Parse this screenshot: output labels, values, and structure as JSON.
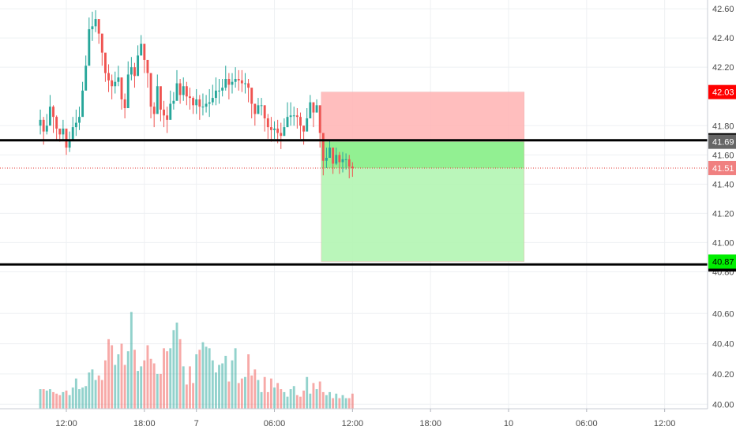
{
  "chart_data": {
    "type": "candlestick",
    "title": "",
    "price_axis": {
      "range": [
        40.77,
        42.66
      ],
      "ticks": [
        "42.60",
        "42.40",
        "42.20",
        "41.80",
        "41.60",
        "41.40",
        "41.20",
        "41.00",
        "40.80"
      ]
    },
    "volume_axis": {
      "range": [
        39.97,
        40.69
      ],
      "ticks": [
        "40.60",
        "40.40",
        "40.20",
        "40.00"
      ]
    },
    "x_axis": {
      "ticks": [
        {
          "label": "12:00",
          "t": 2
        },
        {
          "label": "18:00",
          "t": 8
        },
        {
          "label": "7",
          "t": 12
        },
        {
          "label": "06:00",
          "t": 18
        },
        {
          "label": "12:00",
          "t": 24
        },
        {
          "label": "18:00",
          "t": 30
        },
        {
          "label": "10",
          "t": 36
        },
        {
          "label": "06:00",
          "t": 42
        },
        {
          "label": "12:00",
          "t": 48
        }
      ]
    },
    "horizontal_lines": [
      {
        "price": 41.7,
        "label": "41.70",
        "color": "#000000"
      },
      {
        "price": 40.85,
        "label": "40.85",
        "color": "#000000"
      }
    ],
    "price_badges": [
      {
        "price": 42.03,
        "label": "42.03",
        "bg": "#ff0000",
        "fg": "#ffffff"
      },
      {
        "price": 41.69,
        "label": "41.69",
        "bg": "#666666",
        "fg": "#ffffff"
      },
      {
        "price": 41.51,
        "label": "41.51",
        "bg": "#f08080",
        "fg": "#ffffff"
      },
      {
        "price": 40.87,
        "label": "40.87",
        "bg": "#00ee00",
        "fg": "#000000"
      }
    ],
    "last_price_line": {
      "price": 41.51,
      "color": "#e53935"
    },
    "position": {
      "t_start": 21.6,
      "t_end": 37.2,
      "stop_top": 42.03,
      "entry": 41.69,
      "target": 40.87,
      "loss_color": "#ffb3b3",
      "profit_color": "#b2f5b2",
      "profit_strong_color": "#8ef08e"
    },
    "colors": {
      "up": "#26a69a",
      "down": "#ef5350",
      "grid": "#eef0f3"
    },
    "series": {
      "t0": 0,
      "step": 0.25,
      "close": [
        41.84,
        41.76,
        41.8,
        41.93,
        41.86,
        41.78,
        41.74,
        41.78,
        41.65,
        41.7,
        41.79,
        41.82,
        41.86,
        42.04,
        42.21,
        42.46,
        42.48,
        42.53,
        42.43,
        42.3,
        42.16,
        42.11,
        42.07,
        42.1,
        42.13,
        41.98,
        41.92,
        42.15,
        42.2,
        42.14,
        42.28,
        42.36,
        42.25,
        42.16,
        41.93,
        41.88,
        42.07,
        41.91,
        41.87,
        41.84,
        41.95,
        41.97,
        42.09,
        42.01,
        42.07,
        42.0,
        41.99,
        41.94,
        41.98,
        41.93,
        41.93,
        41.95,
        41.96,
        41.99,
        42.04,
        42.04,
        42.06,
        42.12,
        42.08,
        42.1,
        42.12,
        42.11,
        42.09,
        42.09,
        42.06,
        41.95,
        41.88,
        41.94,
        41.94,
        41.85,
        41.79,
        41.77,
        41.78,
        41.75,
        41.73,
        41.79,
        41.86,
        41.87,
        41.87,
        41.86,
        41.8,
        41.76,
        41.85,
        41.96,
        41.89,
        41.94,
        41.75,
        41.56,
        41.58,
        41.65,
        41.54,
        41.6,
        41.55,
        41.57,
        41.57,
        41.52,
        41.51
      ],
      "high": [
        41.91,
        41.86,
        41.88,
        42.01,
        41.94,
        41.87,
        41.77,
        41.84,
        41.73,
        41.76,
        41.86,
        41.91,
        41.93,
        42.1,
        42.28,
        42.54,
        42.58,
        42.59,
        42.5,
        42.38,
        42.27,
        42.22,
        42.15,
        42.17,
        42.21,
        42.08,
        42.02,
        42.24,
        42.27,
        42.23,
        42.35,
        42.42,
        42.33,
        42.22,
        42.02,
        41.96,
        42.15,
        42.03,
        41.97,
        41.93,
        42.04,
        42.03,
        42.18,
        42.12,
        42.13,
        42.1,
        42.06,
        42.0,
        42.05,
        42.01,
        42.02,
        42.01,
        42.05,
        42.08,
        42.13,
        42.12,
        42.12,
        42.21,
        42.16,
        42.16,
        42.2,
        42.18,
        42.18,
        42.16,
        42.12,
        42.04,
        41.93,
        41.99,
        41.99,
        41.92,
        41.88,
        41.86,
        41.83,
        41.84,
        41.82,
        41.85,
        41.96,
        41.96,
        41.93,
        41.92,
        41.89,
        41.8,
        41.92,
        42.01,
        41.96,
        41.98,
        41.8,
        41.65,
        41.65,
        41.7,
        41.63,
        41.65,
        41.62,
        41.62,
        41.61,
        41.6,
        41.55
      ],
      "low": [
        41.74,
        41.67,
        41.74,
        41.83,
        41.75,
        41.7,
        41.69,
        41.7,
        41.6,
        41.62,
        41.73,
        41.73,
        41.77,
        41.95,
        42.11,
        42.4,
        42.38,
        42.44,
        42.36,
        42.21,
        42.1,
        42.03,
        41.98,
        42.02,
        42.07,
        41.91,
        41.85,
        42.06,
        42.11,
        42.06,
        42.22,
        42.29,
        42.16,
        42.06,
        41.85,
        41.79,
        41.98,
        41.83,
        41.79,
        41.75,
        41.9,
        41.91,
        42.02,
        41.95,
        41.97,
        41.94,
        41.91,
        41.88,
        41.88,
        41.84,
        41.87,
        41.89,
        41.86,
        41.94,
        41.94,
        41.95,
        42.0,
        42.04,
        41.98,
        42.02,
        42.06,
        42.04,
        42.03,
        42.02,
        41.96,
        41.85,
        41.8,
        41.89,
        41.87,
        41.76,
        41.71,
        41.69,
        41.71,
        41.68,
        41.64,
        41.73,
        41.79,
        41.8,
        41.8,
        41.78,
        41.71,
        41.67,
        41.78,
        41.89,
        41.79,
        41.89,
        41.65,
        41.46,
        41.51,
        41.58,
        41.47,
        41.53,
        41.47,
        41.48,
        41.5,
        41.44,
        41.45
      ],
      "volume": [
        40.1,
        40.1,
        40.09,
        40.1,
        40.08,
        40.07,
        40.06,
        40.08,
        40.09,
        40.06,
        40.11,
        40.17,
        40.1,
        40.11,
        40.12,
        40.21,
        40.23,
        40.16,
        40.19,
        40.16,
        40.29,
        40.43,
        40.39,
        40.26,
        40.33,
        40.4,
        40.26,
        40.35,
        40.61,
        40.36,
        40.22,
        40.25,
        40.29,
        40.39,
        40.3,
        40.27,
        40.2,
        40.2,
        40.37,
        40.35,
        40.37,
        40.49,
        40.54,
        40.43,
        40.25,
        40.13,
        40.25,
        40.14,
        40.33,
        40.36,
        40.41,
        40.38,
        40.37,
        40.29,
        40.21,
        40.26,
        40.27,
        40.32,
        40.15,
        40.29,
        40.37,
        40.14,
        40.17,
        40.18,
        40.33,
        40.19,
        40.23,
        40.16,
        40.08,
        40.18,
        40.08,
        40.17,
        40.11,
        40.14,
        40.1,
        40.08,
        40.05,
        40.1,
        40.12,
        40.06,
        40.05,
        40.09,
        40.18,
        40.07,
        40.14,
        40.1,
        40.15,
        40.08,
        40.06,
        40.08,
        40.04,
        40.07,
        40.04,
        40.06,
        40.04,
        40.04,
        40.07
      ]
    }
  }
}
